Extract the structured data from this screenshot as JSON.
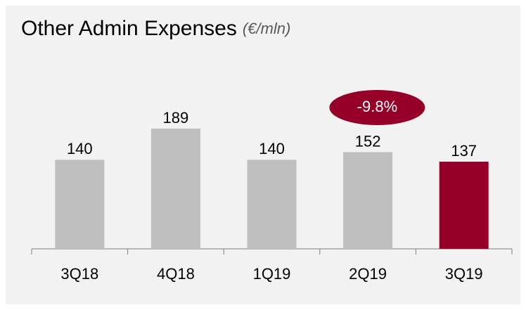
{
  "chart_data": {
    "type": "bar",
    "title": "Other Admin Expenses",
    "subtitle": "(€/mln)",
    "categories": [
      "3Q18",
      "4Q18",
      "1Q19",
      "2Q19",
      "3Q19"
    ],
    "values": [
      140,
      189,
      140,
      152,
      137
    ],
    "colors": [
      "#bfbfbf",
      "#bfbfbf",
      "#bfbfbf",
      "#bfbfbf",
      "#960028"
    ],
    "ylim": [
      0,
      200
    ],
    "annotations": [
      {
        "text": "-9.8%",
        "color": "#960028"
      }
    ]
  }
}
